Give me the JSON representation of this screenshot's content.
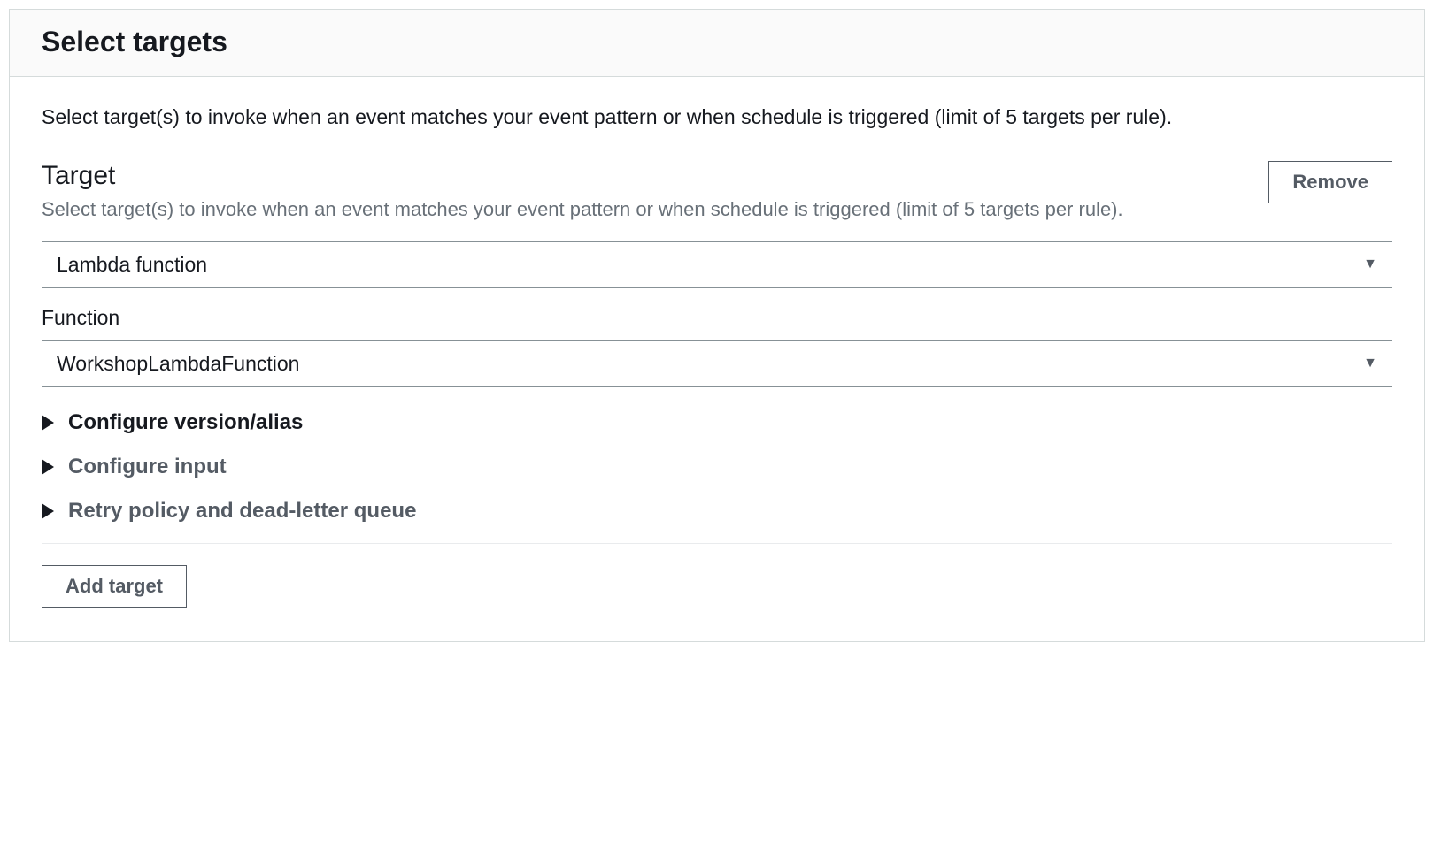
{
  "panel": {
    "title": "Select targets",
    "description": "Select target(s) to invoke when an event matches your event pattern or when schedule is triggered (limit of 5 targets per rule)."
  },
  "target": {
    "heading": "Target",
    "subtext": "Select target(s) to invoke when an event matches your event pattern or when schedule is triggered (limit of 5 targets per rule).",
    "remove_label": "Remove",
    "type_select": {
      "value": "Lambda function"
    },
    "function_label": "Function",
    "function_select": {
      "value": "WorkshopLambdaFunction"
    },
    "expandables": {
      "version_alias": "Configure version/alias",
      "configure_input": "Configure input",
      "retry_policy": "Retry policy and dead-letter queue"
    }
  },
  "footer": {
    "add_target_label": "Add target"
  }
}
